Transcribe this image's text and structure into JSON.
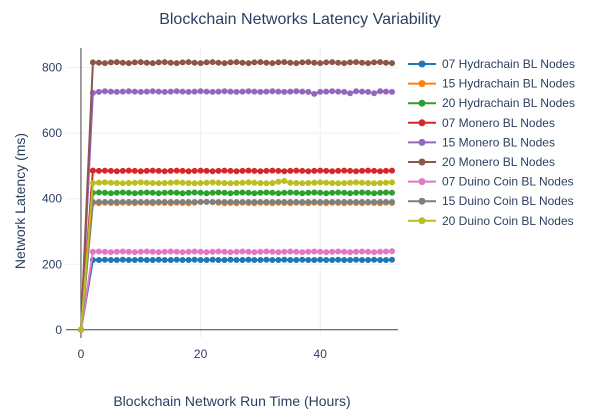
{
  "chart_data": {
    "type": "line",
    "title": "Blockchain Networks Latency Variability",
    "xlabel": "Blockchain Network Run Time (Hours)",
    "ylabel": "Network Latency (ms)",
    "xlim": [
      -2.5,
      53
    ],
    "ylim": [
      -25,
      860
    ],
    "x_ticks": [
      0,
      20,
      40
    ],
    "y_ticks": [
      0,
      200,
      400,
      600,
      800
    ],
    "grid": true,
    "legend_position": "right",
    "x": [
      0,
      2,
      3,
      4,
      5,
      6,
      7,
      8,
      9,
      10,
      11,
      12,
      13,
      14,
      15,
      16,
      17,
      18,
      19,
      20,
      21,
      22,
      23,
      24,
      25,
      26,
      27,
      28,
      29,
      30,
      31,
      32,
      33,
      34,
      35,
      36,
      37,
      38,
      39,
      40,
      41,
      42,
      43,
      44,
      45,
      46,
      47,
      48,
      49,
      50,
      51,
      52
    ],
    "series": [
      {
        "name": "07 Hydrachain BL Nodes",
        "color": "#1f77b4",
        "values": [
          0,
          213,
          213,
          214,
          213,
          213,
          214,
          213,
          213,
          214,
          213,
          213,
          214,
          213,
          213,
          214,
          213,
          213,
          214,
          213,
          213,
          214,
          213,
          213,
          214,
          213,
          213,
          214,
          213,
          213,
          214,
          213,
          213,
          214,
          213,
          213,
          214,
          213,
          213,
          214,
          213,
          213,
          214,
          213,
          213,
          214,
          213,
          213,
          214,
          213,
          213,
          214
        ]
      },
      {
        "name": "15 Hydrachain BL Nodes",
        "color": "#ff7f0e",
        "values": [
          0,
          387,
          386,
          388,
          387,
          386,
          388,
          387,
          386,
          388,
          387,
          386,
          388,
          387,
          386,
          388,
          387,
          386,
          388,
          390,
          391,
          389,
          388,
          386,
          387,
          386,
          388,
          387,
          386,
          388,
          387,
          386,
          388,
          387,
          386,
          388,
          387,
          386,
          388,
          387,
          386,
          388,
          387,
          386,
          388,
          387,
          386,
          388,
          387,
          386,
          388,
          387
        ]
      },
      {
        "name": "20 Hydrachain BL Nodes",
        "color": "#2ca02c",
        "values": [
          0,
          418,
          419,
          418,
          417,
          418,
          419,
          418,
          417,
          418,
          419,
          418,
          417,
          418,
          419,
          418,
          417,
          418,
          419,
          418,
          417,
          418,
          419,
          418,
          417,
          418,
          419,
          418,
          417,
          418,
          419,
          418,
          417,
          418,
          419,
          418,
          417,
          418,
          419,
          418,
          417,
          418,
          419,
          418,
          417,
          418,
          419,
          418,
          417,
          418,
          419,
          418
        ]
      },
      {
        "name": "07 Monero BL Nodes",
        "color": "#d62728",
        "values": [
          0,
          486,
          485,
          486,
          485,
          484,
          485,
          486,
          485,
          484,
          485,
          486,
          485,
          484,
          485,
          486,
          485,
          484,
          485,
          486,
          485,
          484,
          485,
          486,
          485,
          484,
          485,
          486,
          485,
          484,
          485,
          486,
          485,
          484,
          485,
          486,
          485,
          484,
          485,
          486,
          485,
          484,
          485,
          486,
          485,
          484,
          485,
          486,
          485,
          484,
          485,
          486
        ]
      },
      {
        "name": "15 Monero BL Nodes",
        "color": "#9467bd",
        "values": [
          0,
          723,
          726,
          728,
          727,
          726,
          727,
          728,
          727,
          726,
          727,
          728,
          727,
          726,
          727,
          728,
          727,
          726,
          727,
          728,
          727,
          726,
          727,
          728,
          727,
          726,
          727,
          728,
          727,
          726,
          727,
          728,
          727,
          726,
          727,
          728,
          727,
          726,
          720,
          726,
          727,
          728,
          727,
          726,
          722,
          728,
          727,
          726,
          722,
          728,
          727,
          726
        ]
      },
      {
        "name": "20 Monero BL Nodes",
        "color": "#8c564b",
        "values": [
          0,
          816,
          815,
          814,
          816,
          817,
          815,
          814,
          816,
          817,
          815,
          814,
          816,
          817,
          815,
          814,
          816,
          817,
          815,
          814,
          816,
          817,
          815,
          814,
          816,
          817,
          815,
          814,
          816,
          817,
          815,
          814,
          816,
          817,
          815,
          814,
          816,
          817,
          815,
          814,
          816,
          817,
          815,
          814,
          816,
          817,
          815,
          814,
          816,
          817,
          815,
          814
        ]
      },
      {
        "name": "07 Duino Coin BL Nodes",
        "color": "#e377c2",
        "values": [
          0,
          238,
          239,
          238,
          237,
          238,
          239,
          238,
          237,
          238,
          239,
          238,
          237,
          238,
          239,
          238,
          237,
          238,
          239,
          238,
          237,
          238,
          239,
          238,
          237,
          238,
          239,
          238,
          237,
          238,
          239,
          238,
          237,
          238,
          239,
          238,
          237,
          238,
          239,
          238,
          237,
          238,
          239,
          238,
          237,
          238,
          239,
          238,
          237,
          238,
          239,
          240
        ]
      },
      {
        "name": "15 Duino Coin BL Nodes",
        "color": "#7f7f7f",
        "values": [
          0,
          390,
          390,
          390,
          390,
          390,
          390,
          390,
          390,
          390,
          390,
          390,
          390,
          390,
          390,
          390,
          390,
          390,
          390,
          390,
          390,
          390,
          390,
          390,
          390,
          390,
          390,
          390,
          390,
          390,
          390,
          390,
          390,
          390,
          390,
          390,
          390,
          390,
          390,
          390,
          390,
          390,
          390,
          390,
          390,
          390,
          390,
          390,
          390,
          390,
          390,
          390
        ]
      },
      {
        "name": "20 Duino Coin BL Nodes",
        "color": "#bcbd22",
        "values": [
          0,
          448,
          449,
          450,
          449,
          448,
          447,
          448,
          449,
          450,
          449,
          448,
          447,
          448,
          449,
          450,
          449,
          448,
          447,
          448,
          449,
          450,
          449,
          448,
          447,
          448,
          449,
          450,
          449,
          448,
          447,
          448,
          452,
          454,
          449,
          448,
          447,
          448,
          449,
          450,
          449,
          448,
          447,
          448,
          449,
          450,
          449,
          448,
          447,
          448,
          449,
          450
        ]
      }
    ]
  }
}
